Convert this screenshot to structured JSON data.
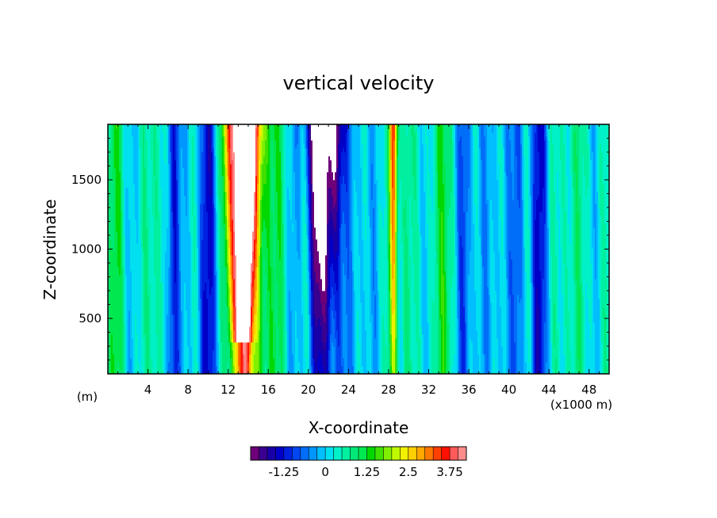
{
  "chart_data": {
    "type": "heatmap",
    "title": "vertical velocity",
    "xlabel": "X-coordinate",
    "ylabel": "Z-coordinate",
    "x_unit_left": "(m)",
    "x_unit_right": "(x1000 m)",
    "xlim": [
      0,
      50
    ],
    "ylim": [
      100,
      1900
    ],
    "x_ticks": [
      4,
      8,
      12,
      16,
      20,
      24,
      28,
      32,
      36,
      40,
      44,
      48
    ],
    "y_ticks": [
      500,
      1000,
      1500
    ],
    "colorbar": {
      "min": -2.25,
      "max": 4.25,
      "step": 0.25,
      "tick_values": [
        -1.25,
        0,
        1.25,
        2.5,
        3.75
      ],
      "tick_labels": [
        "-1.25",
        "0",
        "1.25",
        "2.5",
        "3.75"
      ],
      "colors": [
        "#6e007a",
        "#3a0090",
        "#1800a8",
        "#0000c8",
        "#0020e0",
        "#0046f0",
        "#006ef8",
        "#0096ff",
        "#00beff",
        "#00e0f0",
        "#00f0c8",
        "#00f0a0",
        "#00e878",
        "#00e850",
        "#00d800",
        "#40e000",
        "#80f000",
        "#c0f800",
        "#f0f000",
        "#ffd000",
        "#ffa800",
        "#ff7800",
        "#ff4000",
        "#ff1000",
        "#ff5a5a",
        "#ff8c8c"
      ]
    },
    "features": [
      {
        "x": 13.5,
        "peak_w": 4.5,
        "kind": "updraft",
        "description": "strong updraft column, narrows toward bottom near 400 m"
      },
      {
        "x": 21.5,
        "peak_w": -2.5,
        "kind": "downdraft",
        "description": "strong downdraft column, strongest above 1250 m"
      },
      {
        "x": 28.5,
        "peak_w": 3.0,
        "kind": "updraft"
      },
      {
        "x": 6.5,
        "peak_w": -1.5,
        "kind": "downdraft"
      },
      {
        "x": 35.5,
        "peak_w": -1.3,
        "kind": "downdraft"
      },
      {
        "x": 43.0,
        "peak_w": -1.4,
        "kind": "downdraft"
      }
    ]
  }
}
